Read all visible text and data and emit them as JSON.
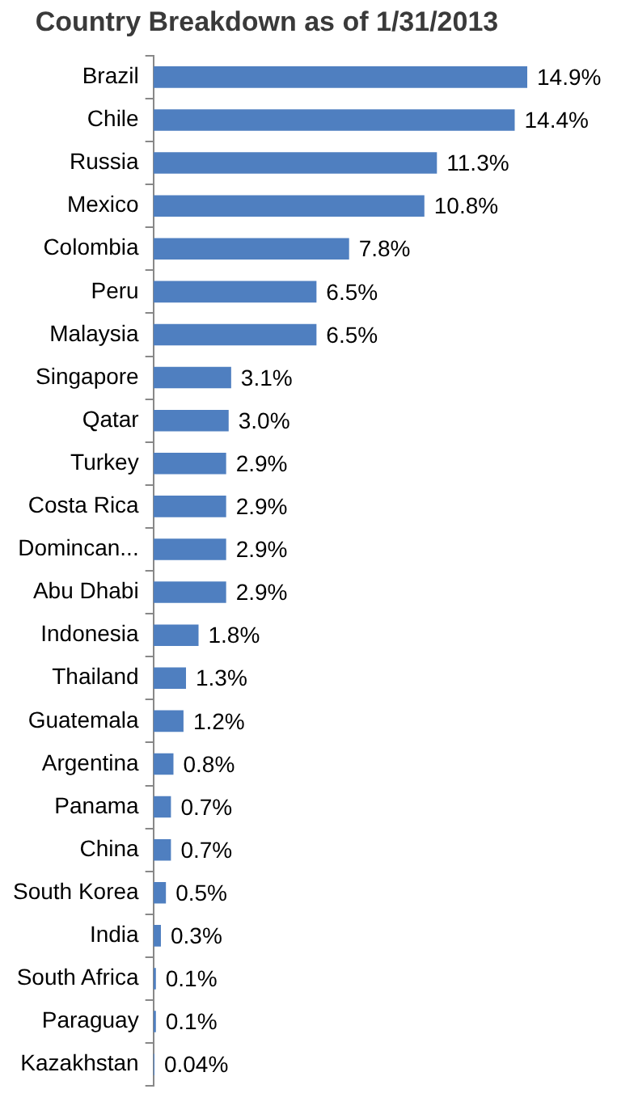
{
  "chart_data": {
    "type": "bar",
    "orientation": "horizontal",
    "title": "Country Breakdown as of 1/31/2013",
    "categories": [
      "Brazil",
      "Chile",
      "Russia",
      "Mexico",
      "Colombia",
      "Peru",
      "Malaysia",
      "Singapore",
      "Qatar",
      "Turkey",
      "Costa Rica",
      "Domincan...",
      "Abu Dhabi",
      "Indonesia",
      "Thailand",
      "Guatemala",
      "Argentina",
      "Panama",
      "China",
      "South Korea",
      "India",
      "South Africa",
      "Paraguay",
      "Kazakhstan"
    ],
    "values": [
      14.9,
      14.4,
      11.3,
      10.8,
      7.8,
      6.5,
      6.5,
      3.1,
      3.0,
      2.9,
      2.9,
      2.9,
      2.9,
      1.8,
      1.3,
      1.2,
      0.8,
      0.7,
      0.7,
      0.5,
      0.3,
      0.1,
      0.1,
      0.04
    ],
    "value_labels": [
      "14.9%",
      "14.4%",
      "11.3%",
      "10.8%",
      "7.8%",
      "6.5%",
      "6.5%",
      "3.1%",
      "3.0%",
      "2.9%",
      "2.9%",
      "2.9%",
      "2.9%",
      "1.8%",
      "1.3%",
      "1.2%",
      "0.8%",
      "0.7%",
      "0.7%",
      "0.5%",
      "0.3%",
      "0.1%",
      "0.1%",
      "0.04%"
    ],
    "color": "#4f7fc0"
  }
}
